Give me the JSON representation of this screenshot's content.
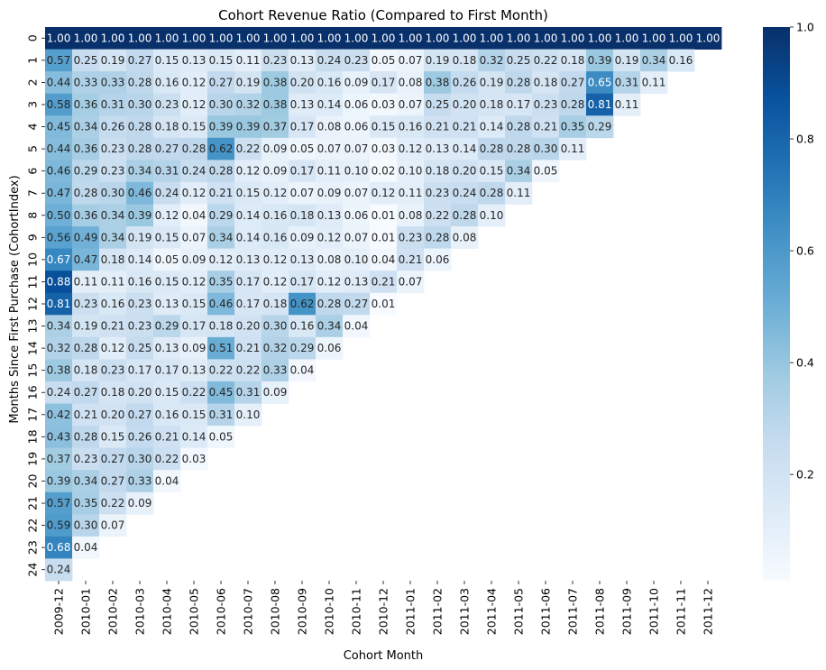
{
  "chart_data": {
    "type": "heatmap",
    "title": "Cohort Revenue Ratio (Compared to First Month)",
    "xlabel": "Cohort Month",
    "ylabel": "Months Since First Purchase (CohortIndex)",
    "x_categories": [
      "2009-12",
      "2010-01",
      "2010-02",
      "2010-03",
      "2010-04",
      "2010-05",
      "2010-06",
      "2010-07",
      "2010-08",
      "2010-09",
      "2010-10",
      "2010-11",
      "2010-12",
      "2011-01",
      "2011-02",
      "2011-03",
      "2011-04",
      "2011-05",
      "2011-06",
      "2011-07",
      "2011-08",
      "2011-09",
      "2011-10",
      "2011-11",
      "2011-12"
    ],
    "y_categories": [
      "0",
      "1",
      "2",
      "3",
      "4",
      "5",
      "6",
      "7",
      "8",
      "9",
      "10",
      "11",
      "12",
      "13",
      "14",
      "15",
      "16",
      "17",
      "18",
      "19",
      "20",
      "21",
      "22",
      "23",
      "24"
    ],
    "values": [
      [
        1.0,
        1.0,
        1.0,
        1.0,
        1.0,
        1.0,
        1.0,
        1.0,
        1.0,
        1.0,
        1.0,
        1.0,
        1.0,
        1.0,
        1.0,
        1.0,
        1.0,
        1.0,
        1.0,
        1.0,
        1.0,
        1.0,
        1.0,
        1.0,
        1.0
      ],
      [
        0.57,
        0.25,
        0.19,
        0.27,
        0.15,
        0.13,
        0.15,
        0.11,
        0.23,
        0.13,
        0.24,
        0.23,
        0.05,
        0.07,
        0.19,
        0.18,
        0.32,
        0.25,
        0.22,
        0.18,
        0.39,
        0.19,
        0.34,
        0.16
      ],
      [
        0.44,
        0.33,
        0.33,
        0.28,
        0.16,
        0.12,
        0.27,
        0.19,
        0.38,
        0.2,
        0.16,
        0.09,
        0.17,
        0.08,
        0.38,
        0.26,
        0.19,
        0.28,
        0.18,
        0.27,
        0.65,
        0.31,
        0.11
      ],
      [
        0.58,
        0.36,
        0.31,
        0.3,
        0.23,
        0.12,
        0.3,
        0.32,
        0.38,
        0.13,
        0.14,
        0.06,
        0.03,
        0.07,
        0.25,
        0.2,
        0.18,
        0.17,
        0.23,
        0.28,
        0.81,
        0.11
      ],
      [
        0.45,
        0.34,
        0.26,
        0.28,
        0.18,
        0.15,
        0.39,
        0.39,
        0.37,
        0.17,
        0.08,
        0.06,
        0.15,
        0.16,
        0.21,
        0.21,
        0.14,
        0.28,
        0.21,
        0.35,
        0.29
      ],
      [
        0.44,
        0.36,
        0.23,
        0.28,
        0.27,
        0.28,
        0.62,
        0.22,
        0.09,
        0.05,
        0.07,
        0.07,
        0.03,
        0.12,
        0.13,
        0.14,
        0.28,
        0.28,
        0.3,
        0.11
      ],
      [
        0.46,
        0.29,
        0.23,
        0.34,
        0.31,
        0.24,
        0.28,
        0.12,
        0.09,
        0.17,
        0.11,
        0.1,
        0.02,
        0.1,
        0.18,
        0.2,
        0.15,
        0.34,
        0.05
      ],
      [
        0.47,
        0.28,
        0.3,
        0.46,
        0.24,
        0.12,
        0.21,
        0.15,
        0.12,
        0.07,
        0.09,
        0.07,
        0.12,
        0.11,
        0.23,
        0.24,
        0.28,
        0.11
      ],
      [
        0.5,
        0.36,
        0.34,
        0.39,
        0.12,
        0.04,
        0.29,
        0.14,
        0.16,
        0.18,
        0.13,
        0.06,
        0.01,
        0.08,
        0.22,
        0.28,
        0.1
      ],
      [
        0.56,
        0.49,
        0.34,
        0.19,
        0.15,
        0.07,
        0.34,
        0.14,
        0.16,
        0.09,
        0.12,
        0.07,
        0.01,
        0.23,
        0.28,
        0.08
      ],
      [
        0.67,
        0.47,
        0.18,
        0.14,
        0.05,
        0.09,
        0.12,
        0.13,
        0.12,
        0.13,
        0.08,
        0.1,
        0.04,
        0.21,
        0.06
      ],
      [
        0.88,
        0.11,
        0.11,
        0.16,
        0.15,
        0.12,
        0.35,
        0.17,
        0.12,
        0.17,
        0.12,
        0.13,
        0.21,
        0.07
      ],
      [
        0.81,
        0.23,
        0.16,
        0.23,
        0.13,
        0.15,
        0.46,
        0.17,
        0.18,
        0.62,
        0.28,
        0.27,
        0.01
      ],
      [
        0.34,
        0.19,
        0.21,
        0.23,
        0.29,
        0.17,
        0.18,
        0.2,
        0.3,
        0.16,
        0.34,
        0.04
      ],
      [
        0.32,
        0.28,
        0.12,
        0.25,
        0.13,
        0.09,
        0.51,
        0.21,
        0.32,
        0.29,
        0.06
      ],
      [
        0.38,
        0.18,
        0.23,
        0.17,
        0.17,
        0.13,
        0.22,
        0.22,
        0.33,
        0.04
      ],
      [
        0.24,
        0.27,
        0.18,
        0.2,
        0.15,
        0.22,
        0.45,
        0.31,
        0.09
      ],
      [
        0.42,
        0.21,
        0.2,
        0.27,
        0.16,
        0.15,
        0.31,
        0.1
      ],
      [
        0.43,
        0.28,
        0.15,
        0.26,
        0.21,
        0.14,
        0.05
      ],
      [
        0.37,
        0.23,
        0.27,
        0.3,
        0.22,
        0.03
      ],
      [
        0.39,
        0.34,
        0.27,
        0.33,
        0.04
      ],
      [
        0.57,
        0.35,
        0.22,
        0.09
      ],
      [
        0.59,
        0.3,
        0.07
      ],
      [
        0.68,
        0.04
      ],
      [
        0.24
      ]
    ],
    "vmin": 0.01,
    "vmax": 1.0,
    "colormap": "Blues",
    "colorbar_ticks": [
      0.2,
      0.4,
      0.6,
      0.8,
      1.0
    ],
    "colorbar_tick_labels": [
      "0.2",
      "0.4",
      "0.6",
      "0.8",
      "1.0"
    ],
    "value_format": "2 decimals"
  }
}
